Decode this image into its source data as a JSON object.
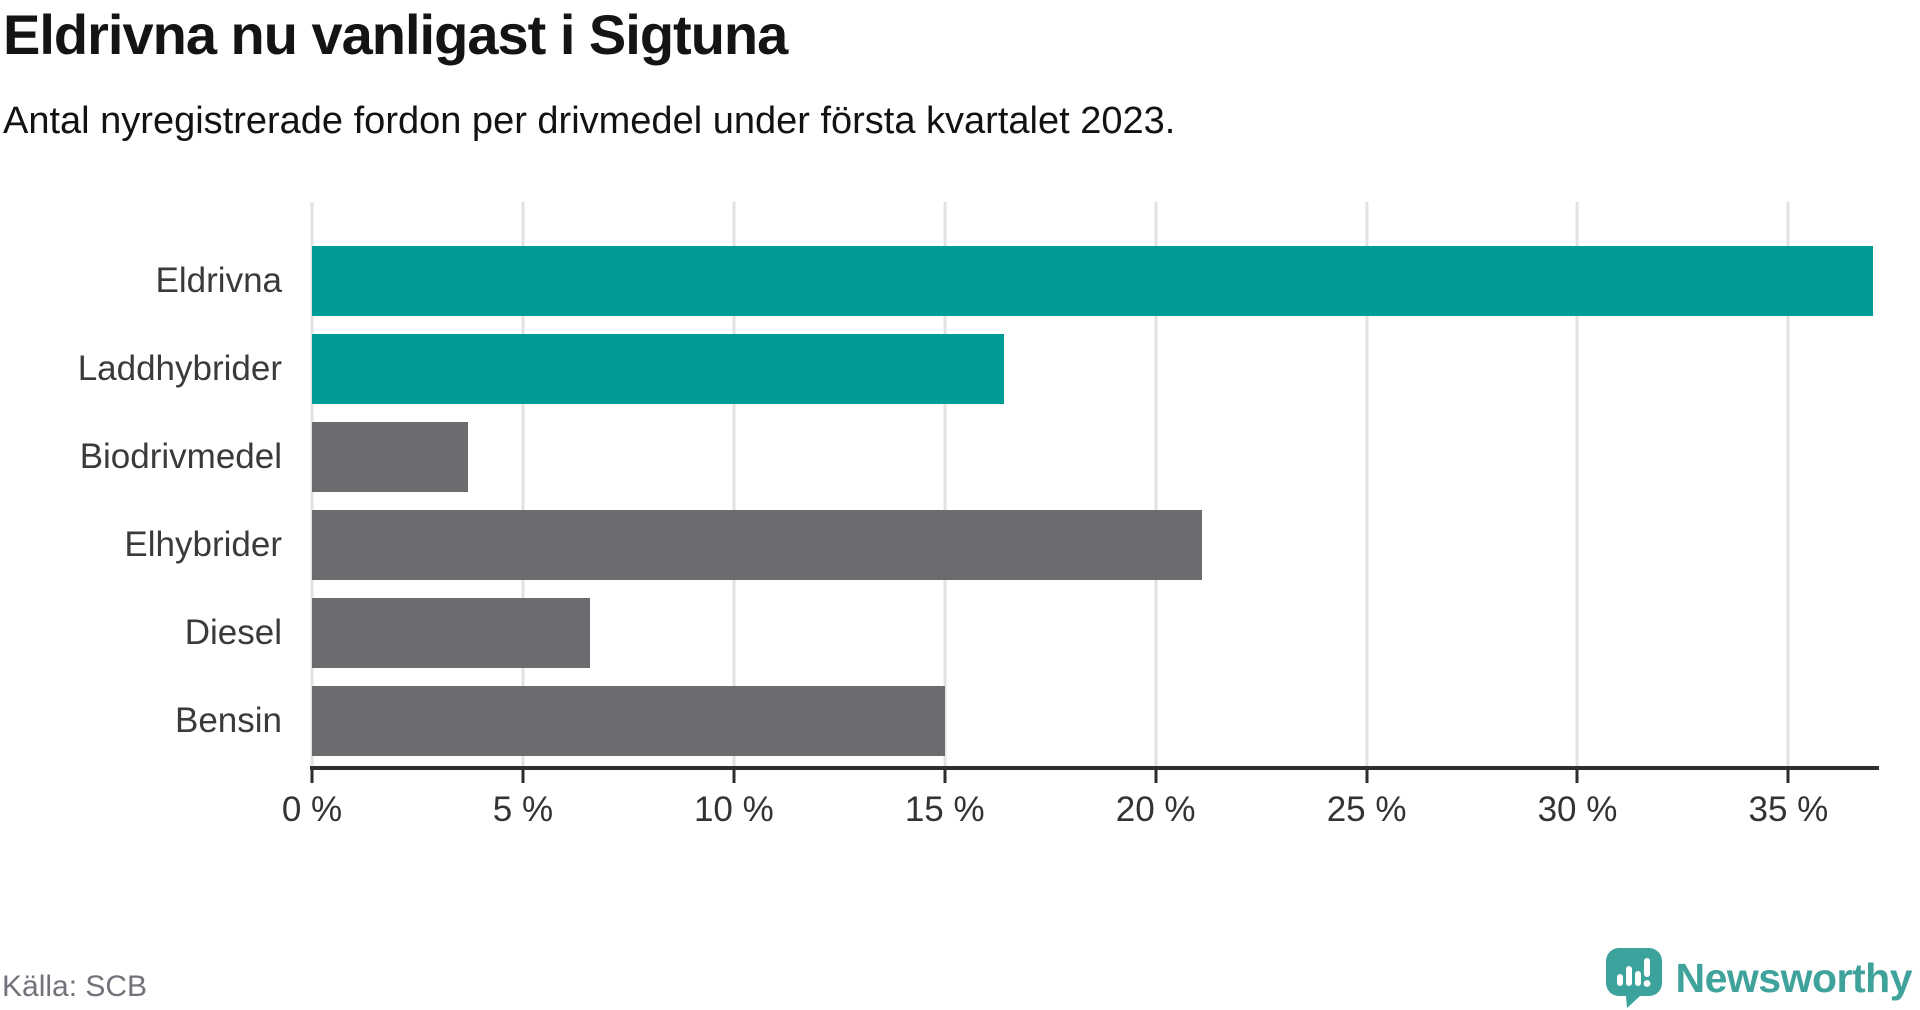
{
  "header": {
    "title": "Eldrivna nu vanligast i Sigtuna",
    "subtitle": "Antal nyregistrerade fordon per drivmedel under första kvartalet 2023."
  },
  "source": {
    "label": "Källa: SCB"
  },
  "branding": {
    "name": "Newsworthy",
    "icon": "newsworthy-speech-bubble-bar-chart-icon"
  },
  "colors": {
    "highlight": "#009c95",
    "default": "#6d6a70",
    "axis": "#2e2e2e",
    "grid": "#e2e2e2",
    "label": "#3a3a3a",
    "brand_teal": "#3fa29b"
  },
  "chart_data": {
    "type": "bar",
    "orientation": "horizontal",
    "title": "Eldrivna nu vanligast i Sigtuna",
    "subtitle": "Antal nyregistrerade fordon per drivmedel under första kvartalet 2023.",
    "categories": [
      "Eldrivna",
      "Laddhybrider",
      "Biodrivmedel",
      "Elhybrider",
      "Diesel",
      "Bensin"
    ],
    "values": [
      37.0,
      16.4,
      3.7,
      21.1,
      6.6,
      15.0
    ],
    "bar_colors": [
      "#009c95",
      "#009c95",
      "#6d6a70",
      "#6d6a70",
      "#6d6a70",
      "#6d6a70"
    ],
    "unit": "%",
    "xlabel": "",
    "ylabel": "",
    "xlim": [
      0,
      37.1
    ],
    "x_ticks": [
      0,
      5,
      10,
      15,
      20,
      25,
      30,
      35
    ],
    "x_tick_suffix": " %",
    "grid": true,
    "legend": false,
    "source": "Källa: SCB"
  }
}
